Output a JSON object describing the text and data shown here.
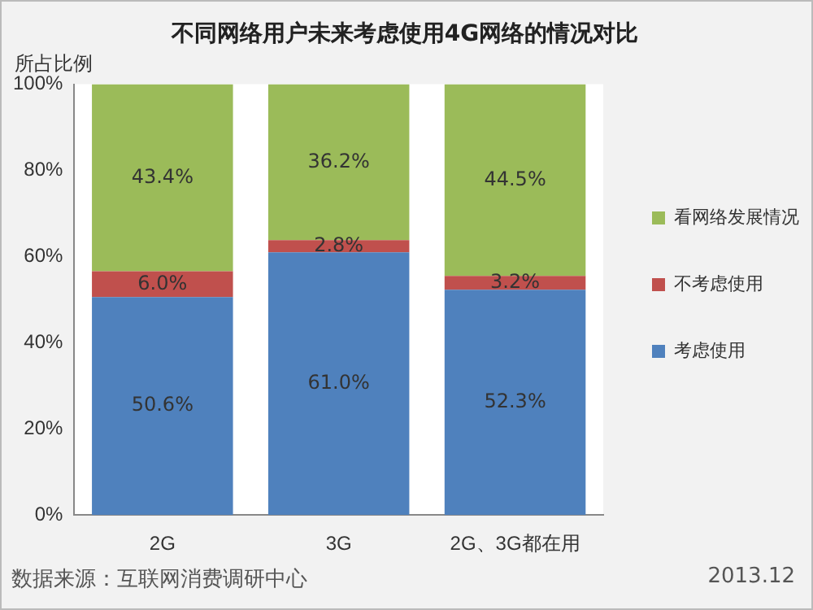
{
  "chart_data": {
    "type": "bar",
    "stacked": true,
    "title": "不同网络用户未来考虑使用4G网络的情况对比",
    "ylabel": "所占比例",
    "categories": [
      "2G",
      "3G",
      "2G、3G都在用"
    ],
    "series": [
      {
        "name": "考虑使用",
        "color": "#4f81bd",
        "values": [
          50.6,
          61.0,
          52.3
        ],
        "value_labels": [
          "50.6%",
          "61.0%",
          "52.3%"
        ]
      },
      {
        "name": "不考虑使用",
        "color": "#c0504d",
        "values": [
          6.0,
          2.8,
          3.2
        ],
        "value_labels": [
          "6.0%",
          "2.8%",
          "3.2%"
        ]
      },
      {
        "name": "看网络发展情况",
        "color": "#9bbb59",
        "values": [
          43.4,
          36.2,
          44.5
        ],
        "value_labels": [
          "43.4%",
          "36.2%",
          "44.5%"
        ]
      }
    ],
    "ylim": [
      0,
      100
    ],
    "yticks": [
      {
        "value": 0,
        "label": "0%"
      },
      {
        "value": 20,
        "label": "20%"
      },
      {
        "value": 40,
        "label": "40%"
      },
      {
        "value": 60,
        "label": "60%"
      },
      {
        "value": 80,
        "label": "80%"
      },
      {
        "value": 100,
        "label": "100%"
      }
    ],
    "grid": false,
    "legend": "right",
    "annotations": [
      "数据来源：互联网消费调研中心",
      "2013.12"
    ]
  }
}
